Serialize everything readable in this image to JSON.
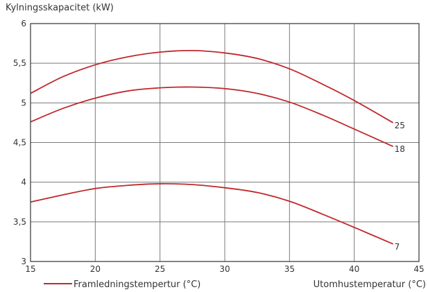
{
  "chart_data": {
    "type": "line",
    "title": "",
    "ylabel": "Kylningsskapacitet (kW)",
    "xlabel": "Utomhustemperatur (°C)",
    "xlim": [
      15,
      45
    ],
    "ylim": [
      3,
      6
    ],
    "xticks": [
      15,
      20,
      25,
      30,
      35,
      40,
      45
    ],
    "yticks": [
      3,
      3.5,
      4,
      4.5,
      5,
      5.5,
      6
    ],
    "ytick_labels": [
      "3",
      "3,5",
      "4",
      "4,5",
      "5",
      "5,5",
      "6"
    ],
    "grid": true,
    "legend": {
      "label": "Framledningstempertur (°C)",
      "placement": "bottom-left"
    },
    "colors": {
      "series": "#c0282d",
      "grid": "#7a7a7a",
      "axis": "#333333"
    },
    "series": [
      {
        "name": "25",
        "x": [
          15,
          17.5,
          20,
          22.5,
          25,
          27.5,
          30,
          32.5,
          35,
          37.5,
          40,
          43
        ],
        "values": [
          5.12,
          5.33,
          5.48,
          5.58,
          5.64,
          5.66,
          5.63,
          5.56,
          5.43,
          5.24,
          5.03,
          4.75
        ]
      },
      {
        "name": "18",
        "x": [
          15,
          17.5,
          20,
          22.5,
          25,
          27.5,
          30,
          32.5,
          35,
          37.5,
          40,
          43
        ],
        "values": [
          4.76,
          4.93,
          5.06,
          5.15,
          5.19,
          5.2,
          5.18,
          5.12,
          5.01,
          4.85,
          4.67,
          4.45
        ]
      },
      {
        "name": "7",
        "x": [
          15,
          17.5,
          20,
          22.5,
          25,
          27.5,
          30,
          32.5,
          35,
          37.5,
          40,
          43
        ],
        "values": [
          3.75,
          3.84,
          3.92,
          3.96,
          3.98,
          3.97,
          3.93,
          3.87,
          3.76,
          3.6,
          3.43,
          3.22
        ]
      }
    ]
  }
}
